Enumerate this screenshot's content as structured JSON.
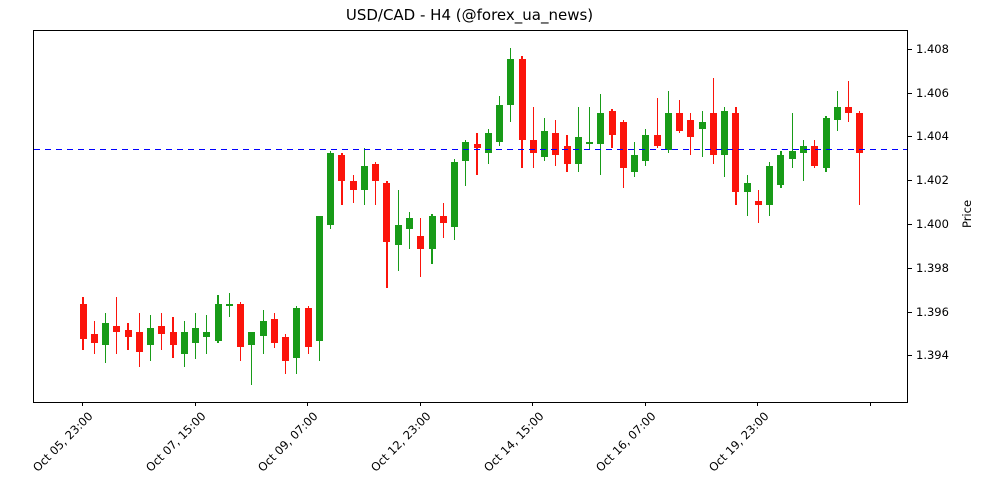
{
  "chart_data": {
    "type": "candlestick",
    "title": "USD/CAD - H4 (@forex_ua_news)",
    "ylabel": "Price",
    "xlabel": "",
    "ylim": [
      1.39191,
      1.40886
    ],
    "grid": false,
    "legend": "none",
    "y_ticks": [
      1.394,
      1.396,
      1.398,
      1.4,
      1.402,
      1.404,
      1.406,
      1.408
    ],
    "y_tick_format": "3-decimals",
    "x_tick_candle_indices": [
      0,
      10,
      20,
      30,
      40,
      50,
      60,
      70
    ],
    "x_tick_labels": [
      "Oct 05, 23:00",
      "Oct 07, 15:00",
      "Oct 09, 07:00",
      "Oct 12, 23:00",
      "Oct 14, 15:00",
      "Oct 16, 07:00",
      "Oct 19, 23:00",
      ""
    ],
    "hline": {
      "price": 1.40345,
      "color": "#0000ff",
      "style": "dashed"
    },
    "up_color": "#189b18",
    "down_color": "#fb140b",
    "candles_format": [
      "open",
      "high",
      "low",
      "close"
    ],
    "candles": [
      [
        1.3964,
        1.3967,
        1.3943,
        1.3948
      ],
      [
        1.395,
        1.3956,
        1.3941,
        1.3946
      ],
      [
        1.3945,
        1.396,
        1.3937,
        1.3955
      ],
      [
        1.3954,
        1.3967,
        1.3941,
        1.3951
      ],
      [
        1.3952,
        1.3955,
        1.3943,
        1.3949
      ],
      [
        1.3951,
        1.396,
        1.3935,
        1.3942
      ],
      [
        1.3945,
        1.3959,
        1.3938,
        1.3953
      ],
      [
        1.3954,
        1.396,
        1.3943,
        1.395
      ],
      [
        1.3951,
        1.3958,
        1.3939,
        1.3945
      ],
      [
        1.3941,
        1.3956,
        1.3935,
        1.3951
      ],
      [
        1.3946,
        1.396,
        1.3939,
        1.3953
      ],
      [
        1.3949,
        1.3959,
        1.3941,
        1.3951
      ],
      [
        1.3947,
        1.3968,
        1.3946,
        1.3964
      ],
      [
        1.3963,
        1.3969,
        1.3958,
        1.3964
      ],
      [
        1.3964,
        1.3965,
        1.3938,
        1.3944
      ],
      [
        1.3945,
        1.3951,
        1.3927,
        1.3951
      ],
      [
        1.3949,
        1.3961,
        1.3941,
        1.3956
      ],
      [
        1.3957,
        1.396,
        1.3944,
        1.3946
      ],
      [
        1.3949,
        1.395,
        1.3932,
        1.3938
      ],
      [
        1.3939,
        1.3963,
        1.3932,
        1.3962
      ],
      [
        1.3962,
        1.3963,
        1.3941,
        1.3944
      ],
      [
        1.3947,
        1.4004,
        1.3938,
        1.4004
      ],
      [
        1.4,
        1.4034,
        1.3998,
        1.4033
      ],
      [
        1.4032,
        1.4033,
        1.4009,
        1.402
      ],
      [
        1.402,
        1.4023,
        1.401,
        1.4016
      ],
      [
        1.4016,
        1.4035,
        1.4009,
        1.4027
      ],
      [
        1.4028,
        1.4029,
        1.4009,
        1.402
      ],
      [
        1.4019,
        1.402,
        1.3971,
        1.3992
      ],
      [
        1.3991,
        1.4016,
        1.3979,
        1.4
      ],
      [
        1.3998,
        1.4006,
        1.3989,
        1.4003
      ],
      [
        1.3995,
        1.4003,
        1.3976,
        1.3989
      ],
      [
        1.3989,
        1.4005,
        1.3982,
        1.4004
      ],
      [
        1.4004,
        1.401,
        1.3994,
        1.4001
      ],
      [
        1.3999,
        1.403,
        1.3993,
        1.4029
      ],
      [
        1.4029,
        1.4039,
        1.4018,
        1.4038
      ],
      [
        1.4037,
        1.4042,
        1.4023,
        1.4035
      ],
      [
        1.4033,
        1.4044,
        1.4028,
        1.4042
      ],
      [
        1.4038,
        1.4059,
        1.4036,
        1.4055
      ],
      [
        1.4055,
        1.4081,
        1.4047,
        1.4076
      ],
      [
        1.4076,
        1.4077,
        1.4026,
        1.4039
      ],
      [
        1.4039,
        1.4054,
        1.4026,
        1.4033
      ],
      [
        1.4031,
        1.4049,
        1.4029,
        1.4043
      ],
      [
        1.4042,
        1.4048,
        1.4027,
        1.4032
      ],
      [
        1.4036,
        1.4041,
        1.4024,
        1.4028
      ],
      [
        1.4028,
        1.4054,
        1.4024,
        1.404
      ],
      [
        1.4037,
        1.4054,
        1.4034,
        1.4038
      ],
      [
        1.4037,
        1.406,
        1.4023,
        1.4051
      ],
      [
        1.4052,
        1.4053,
        1.4035,
        1.4041
      ],
      [
        1.4047,
        1.4048,
        1.4017,
        1.4026
      ],
      [
        1.4024,
        1.4038,
        1.4022,
        1.4032
      ],
      [
        1.4029,
        1.4044,
        1.4027,
        1.4041
      ],
      [
        1.4041,
        1.4058,
        1.4035,
        1.4036
      ],
      [
        1.4034,
        1.4061,
        1.4033,
        1.4051
      ],
      [
        1.4051,
        1.4057,
        1.4042,
        1.4043
      ],
      [
        1.4048,
        1.4051,
        1.4032,
        1.404
      ],
      [
        1.4044,
        1.4052,
        1.4031,
        1.4047
      ],
      [
        1.4051,
        1.4067,
        1.4028,
        1.4032
      ],
      [
        1.4032,
        1.4054,
        1.4022,
        1.4052
      ],
      [
        1.4051,
        1.4054,
        1.4009,
        1.4015
      ],
      [
        1.4015,
        1.4023,
        1.4004,
        1.4019
      ],
      [
        1.4011,
        1.4016,
        1.4001,
        1.4009
      ],
      [
        1.4009,
        1.4029,
        1.4004,
        1.4027
      ],
      [
        1.4018,
        1.4034,
        1.4017,
        1.4032
      ],
      [
        1.403,
        1.4051,
        1.4026,
        1.4034
      ],
      [
        1.4033,
        1.4039,
        1.402,
        1.4036
      ],
      [
        1.4036,
        1.4039,
        1.4026,
        1.4027
      ],
      [
        1.4026,
        1.405,
        1.4024,
        1.4049
      ],
      [
        1.4048,
        1.4061,
        1.4043,
        1.4054
      ],
      [
        1.4054,
        1.4066,
        1.4047,
        1.4051
      ],
      [
        1.4051,
        1.4052,
        1.4009,
        1.4033
      ]
    ]
  }
}
